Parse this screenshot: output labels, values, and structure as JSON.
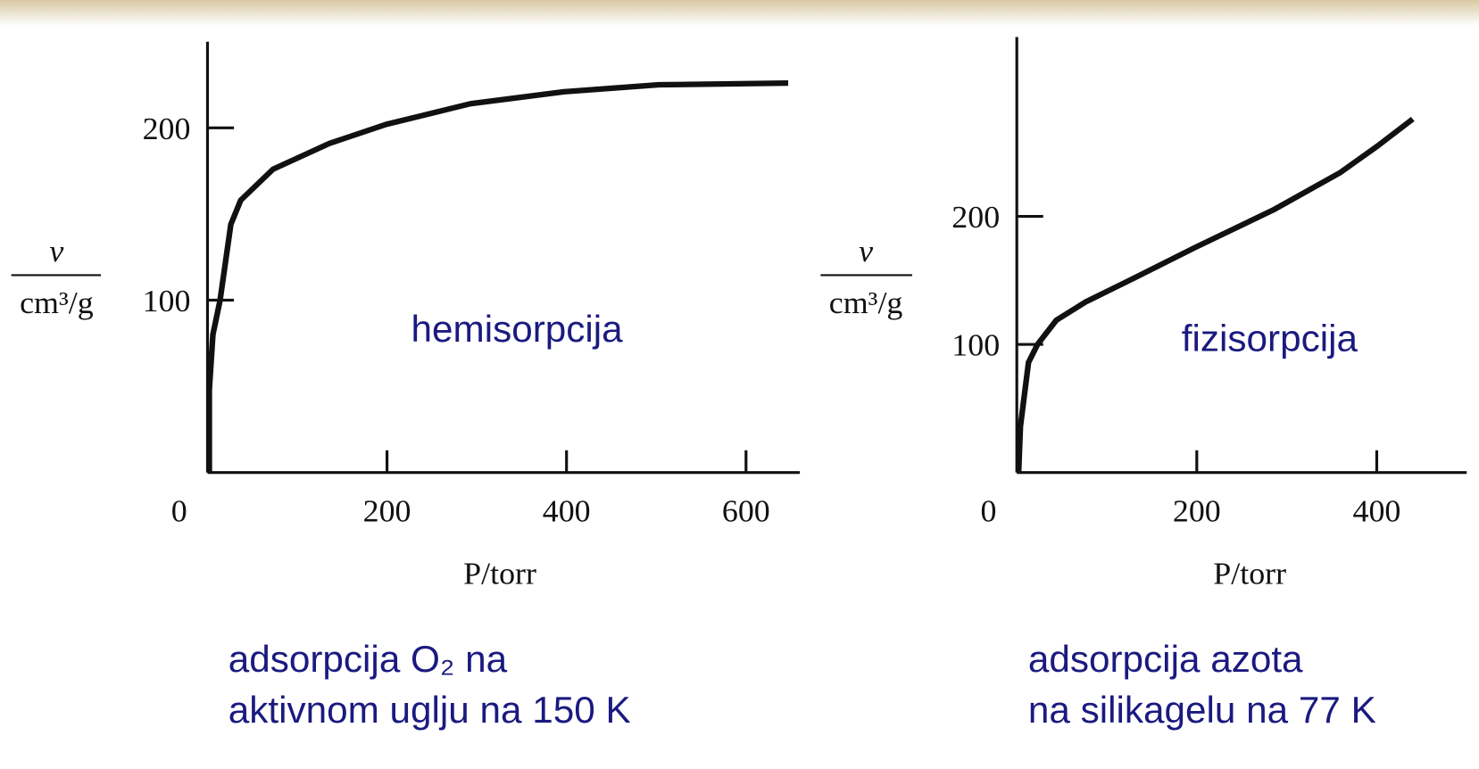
{
  "chart_data": [
    {
      "type": "line",
      "annotation": "hemisorpcija",
      "xlabel": "P/torr",
      "ylabel": [
        "v",
        "cm³/g"
      ],
      "caption": [
        "adsorpcija O₂ na",
        "aktivnom uglju na 150 K"
      ],
      "x": [
        2,
        2,
        6,
        14,
        26,
        37,
        73,
        136,
        199,
        293,
        398,
        503,
        647
      ],
      "values": [
        0,
        48,
        80,
        100,
        144,
        158,
        176,
        191,
        202,
        214,
        221,
        225,
        226
      ],
      "color": "#111111",
      "xlim": [
        0,
        660
      ],
      "ylim": [
        0,
        250
      ],
      "xticks": [
        0,
        200,
        400,
        600
      ],
      "yticks": [
        100,
        200
      ],
      "grid": false
    },
    {
      "type": "line",
      "annotation": "fizisorpcija",
      "xlabel": "P/torr",
      "ylabel": [
        "v",
        "cm³/g"
      ],
      "caption": [
        "adsorpcija azota",
        "na silikagelu na 77 K"
      ],
      "x": [
        2,
        4,
        13,
        23,
        44,
        76,
        128,
        199,
        285,
        359,
        401,
        440
      ],
      "values": [
        0,
        36,
        86,
        100,
        119,
        133,
        151,
        176,
        205,
        234,
        255,
        276
      ],
      "color": "#111111",
      "xlim": [
        0,
        500
      ],
      "ylim": [
        0,
        340
      ],
      "xticks": [
        0,
        200,
        400
      ],
      "yticks": [
        100,
        200
      ],
      "grid": false
    }
  ]
}
